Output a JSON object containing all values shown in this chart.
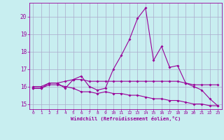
{
  "xlabel": "Windchill (Refroidissement éolien,°C)",
  "background_color": "#c8eef0",
  "grid_color": "#aaaacc",
  "line_color": "#990099",
  "x": [
    0,
    1,
    2,
    3,
    4,
    5,
    6,
    7,
    8,
    9,
    10,
    11,
    12,
    13,
    14,
    15,
    16,
    17,
    18,
    19,
    20,
    21,
    22,
    23
  ],
  "y_main": [
    15.9,
    15.9,
    16.2,
    16.2,
    15.9,
    16.4,
    16.6,
    16.0,
    15.8,
    15.9,
    17.0,
    17.8,
    18.7,
    19.9,
    20.5,
    17.5,
    18.3,
    17.1,
    17.2,
    16.2,
    16.0,
    15.8,
    15.3,
    14.9
  ],
  "y_flat": [
    16.0,
    16.0,
    16.2,
    16.2,
    16.3,
    16.4,
    16.4,
    16.3,
    16.3,
    16.3,
    16.3,
    16.3,
    16.3,
    16.3,
    16.3,
    16.3,
    16.3,
    16.3,
    16.3,
    16.2,
    16.1,
    16.1,
    16.1,
    16.1
  ],
  "y_decline": [
    15.9,
    15.9,
    16.1,
    16.1,
    16.0,
    15.9,
    15.7,
    15.7,
    15.6,
    15.7,
    15.6,
    15.6,
    15.5,
    15.5,
    15.4,
    15.3,
    15.3,
    15.2,
    15.2,
    15.1,
    15.0,
    15.0,
    14.9,
    14.9
  ],
  "ylim": [
    14.7,
    20.8
  ],
  "yticks": [
    15,
    16,
    17,
    18,
    19,
    20
  ],
  "xlim": [
    -0.5,
    23.5
  ],
  "xticks": [
    0,
    1,
    2,
    3,
    4,
    5,
    6,
    7,
    8,
    9,
    10,
    11,
    12,
    13,
    14,
    15,
    16,
    17,
    18,
    19,
    20,
    21,
    22,
    23
  ]
}
